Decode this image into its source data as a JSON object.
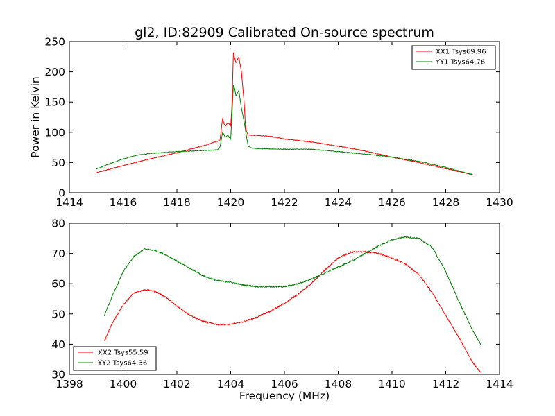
{
  "chart_data": [
    {
      "type": "line",
      "title": "gl2, ID:82909 Calibrated On-source spectrum",
      "xlabel": "",
      "ylabel": "Power in Kelvin",
      "xlim": [
        1414,
        1430
      ],
      "ylim": [
        0,
        250
      ],
      "xticks": [
        "1414",
        "1416",
        "1418",
        "1420",
        "1422",
        "1424",
        "1426",
        "1428",
        "1430"
      ],
      "yticks": [
        "0",
        "50",
        "100",
        "150",
        "200",
        "250"
      ],
      "legend_position": "top-right",
      "grid": false,
      "series": [
        {
          "name": "XX1 Tsys69.96",
          "color": "#ff0000",
          "x": [
            1415.0,
            1416.0,
            1417.0,
            1418.0,
            1418.5,
            1419.0,
            1419.4,
            1419.6,
            1419.7,
            1419.75,
            1419.8,
            1419.9,
            1420.0,
            1420.05,
            1420.1,
            1420.15,
            1420.2,
            1420.3,
            1420.4,
            1420.5,
            1420.55,
            1420.6,
            1420.65,
            1420.8,
            1421.0,
            1421.5,
            1422.0,
            1423.0,
            1424.0,
            1425.0,
            1426.0,
            1427.0,
            1428.0,
            1429.0
          ],
          "y": [
            33,
            45,
            56,
            66,
            72,
            78,
            84,
            86,
            123,
            114,
            110,
            116,
            110,
            145,
            232,
            222,
            215,
            225,
            200,
            150,
            110,
            100,
            96,
            95,
            95,
            93,
            89,
            84,
            77,
            69,
            59,
            50,
            40,
            30
          ]
        },
        {
          "name": "YY1 Tsys64.76",
          "color": "#008000",
          "x": [
            1415.0,
            1415.5,
            1416.0,
            1416.5,
            1417.0,
            1418.0,
            1419.0,
            1419.5,
            1419.6,
            1419.7,
            1419.8,
            1419.9,
            1420.0,
            1420.05,
            1420.1,
            1420.15,
            1420.2,
            1420.3,
            1420.4,
            1420.5,
            1420.6,
            1420.65,
            1420.8,
            1421.0,
            1422.0,
            1423.0,
            1424.0,
            1425.0,
            1426.0,
            1427.0,
            1428.0,
            1429.0
          ],
          "y": [
            39,
            48,
            56,
            62,
            65,
            68,
            70,
            71,
            75,
            100,
            92,
            95,
            88,
            130,
            178,
            172,
            160,
            170,
            140,
            118,
            90,
            77,
            74,
            73,
            72,
            72,
            68,
            64,
            59,
            52,
            42,
            30
          ]
        }
      ]
    },
    {
      "type": "line",
      "title": "",
      "xlabel": "Frequency (MHz)",
      "ylabel": "",
      "xlim": [
        1398,
        1414
      ],
      "ylim": [
        30,
        80
      ],
      "xticks": [
        "1398",
        "1400",
        "1402",
        "1404",
        "1406",
        "1408",
        "1410",
        "1412",
        "1414"
      ],
      "yticks": [
        "30",
        "40",
        "50",
        "60",
        "70",
        "80"
      ],
      "legend_position": "bottom-left",
      "grid": false,
      "series": [
        {
          "name": "XX2 Tsys55.59",
          "color": "#ff0000",
          "x": [
            1399.3,
            1399.6,
            1400.0,
            1400.4,
            1400.8,
            1401.2,
            1401.6,
            1402.0,
            1402.5,
            1403.0,
            1403.5,
            1404.0,
            1404.5,
            1405.0,
            1405.5,
            1406.0,
            1406.5,
            1407.0,
            1407.5,
            1408.0,
            1408.5,
            1409.0,
            1409.5,
            1410.0,
            1410.5,
            1411.0,
            1411.5,
            1412.0,
            1412.5,
            1413.0,
            1413.3
          ],
          "y": [
            41,
            47,
            53,
            57,
            58,
            57.5,
            55.5,
            52.5,
            49.5,
            47.5,
            46.5,
            46.5,
            47.5,
            49,
            51,
            53.5,
            56.5,
            60,
            64.5,
            68.5,
            70.5,
            70.5,
            70,
            68.5,
            66.5,
            63,
            57,
            49.5,
            42,
            34,
            30.5
          ]
        },
        {
          "name": "YY2 Tsys64.36",
          "color": "#008000",
          "x": [
            1399.3,
            1399.6,
            1400.0,
            1400.4,
            1400.8,
            1401.2,
            1401.6,
            1402.0,
            1402.5,
            1403.0,
            1403.5,
            1404.0,
            1404.5,
            1405.0,
            1405.5,
            1406.0,
            1406.5,
            1407.0,
            1407.5,
            1408.0,
            1408.5,
            1409.0,
            1409.5,
            1410.0,
            1410.5,
            1411.0,
            1411.5,
            1412.0,
            1412.5,
            1413.0,
            1413.3
          ],
          "y": [
            49.5,
            56,
            64,
            69,
            71.5,
            71,
            69.5,
            67.5,
            65,
            62.5,
            61,
            60.5,
            59.5,
            59,
            59,
            59,
            60,
            61.5,
            63.5,
            65.5,
            67.5,
            70,
            72.5,
            74.5,
            75.5,
            75,
            72,
            64,
            54,
            44.5,
            40
          ]
        }
      ]
    }
  ]
}
